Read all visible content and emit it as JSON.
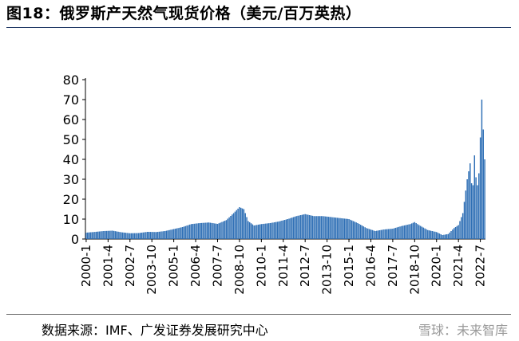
{
  "header": {
    "title": "图18：俄罗斯产天然气现货价格（美元/百万英热）"
  },
  "footer": {
    "source": "数据来源：IMF、广发证券发展研究中心",
    "watermark": "雪球：未来智库"
  },
  "colors": {
    "bar": "#2e6fb5",
    "axis": "#000000",
    "text": "#000000",
    "rule": "#1f3864"
  },
  "chart_data": {
    "type": "bar",
    "title": "",
    "xlabel": "",
    "ylabel": "",
    "ylim": [
      0,
      80
    ],
    "yticks": [
      0,
      10,
      20,
      30,
      40,
      50,
      60,
      70,
      80
    ],
    "grid": false,
    "legend": "none",
    "x_start": "2000-1",
    "x_end": "2022-10",
    "xticks": [
      "2000-1",
      "2001-4",
      "2002-7",
      "2003-10",
      "2005-1",
      "2006-4",
      "2007-7",
      "2008-10",
      "2010-1",
      "2011-4",
      "2012-7",
      "2013-10",
      "2015-1",
      "2016-4",
      "2017-7",
      "2018-10",
      "2020-1",
      "2021-4",
      "2022-7"
    ],
    "monthly_anchors": [
      [
        "2000-1",
        3.2
      ],
      [
        "2000-6",
        3.5
      ],
      [
        "2001-1",
        4.0
      ],
      [
        "2001-7",
        4.2
      ],
      [
        "2002-1",
        3.4
      ],
      [
        "2002-7",
        2.9
      ],
      [
        "2003-1",
        3.0
      ],
      [
        "2003-7",
        3.6
      ],
      [
        "2004-1",
        3.5
      ],
      [
        "2004-7",
        4.0
      ],
      [
        "2005-1",
        5.0
      ],
      [
        "2005-7",
        6.0
      ],
      [
        "2006-1",
        7.5
      ],
      [
        "2006-7",
        8.0
      ],
      [
        "2007-1",
        8.3
      ],
      [
        "2007-7",
        7.6
      ],
      [
        "2008-1",
        9.5
      ],
      [
        "2008-6",
        13.0
      ],
      [
        "2008-10",
        16.0
      ],
      [
        "2009-1",
        15.0
      ],
      [
        "2009-4",
        9.0
      ],
      [
        "2009-8",
        6.8
      ],
      [
        "2010-1",
        7.5
      ],
      [
        "2010-7",
        8.0
      ],
      [
        "2011-1",
        8.8
      ],
      [
        "2011-7",
        10.0
      ],
      [
        "2012-1",
        11.5
      ],
      [
        "2012-7",
        12.5
      ],
      [
        "2013-1",
        11.5
      ],
      [
        "2013-7",
        11.5
      ],
      [
        "2014-1",
        11.0
      ],
      [
        "2014-7",
        10.5
      ],
      [
        "2015-1",
        10.0
      ],
      [
        "2015-7",
        8.0
      ],
      [
        "2016-1",
        5.5
      ],
      [
        "2016-7",
        4.0
      ],
      [
        "2017-1",
        4.8
      ],
      [
        "2017-7",
        5.2
      ],
      [
        "2018-1",
        6.5
      ],
      [
        "2018-7",
        7.5
      ],
      [
        "2018-10",
        8.5
      ],
      [
        "2019-1",
        7.0
      ],
      [
        "2019-7",
        4.5
      ],
      [
        "2020-1",
        3.5
      ],
      [
        "2020-5",
        2.0
      ],
      [
        "2020-9",
        2.5
      ],
      [
        "2021-1",
        5.5
      ],
      [
        "2021-4",
        7.0
      ],
      [
        "2021-7",
        13.0
      ],
      [
        "2021-10",
        30.0
      ],
      [
        "2021-12",
        38.0
      ],
      [
        "2022-1",
        28.0
      ],
      [
        "2022-2",
        27.0
      ],
      [
        "2022-3",
        42.0
      ],
      [
        "2022-4",
        31.0
      ],
      [
        "2022-5",
        27.0
      ],
      [
        "2022-6",
        33.0
      ],
      [
        "2022-7",
        51.0
      ],
      [
        "2022-8",
        70.0
      ],
      [
        "2022-9",
        55.0
      ],
      [
        "2022-10",
        40.0
      ]
    ]
  }
}
